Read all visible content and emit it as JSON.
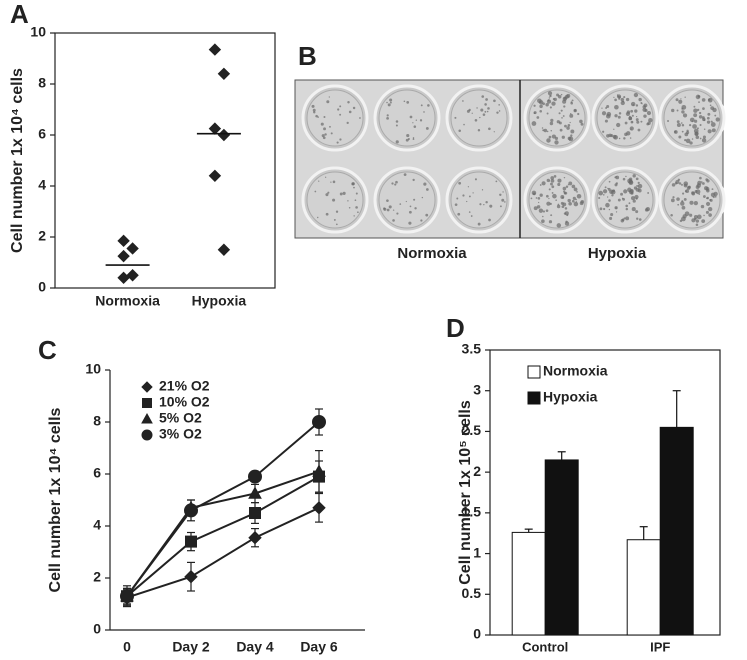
{
  "chart_data": [
    {
      "type": "strip",
      "panel": "A",
      "ylabel": "Cell number 1x 10⁴ cells",
      "categories": [
        "Normoxia",
        "Hypoxia"
      ],
      "values": [
        [
          1.85,
          1.55,
          1.25,
          0.5,
          0.4
        ],
        [
          9.35,
          8.4,
          6.25,
          6.0,
          4.4,
          1.5
        ]
      ],
      "means": [
        0.9,
        6.05
      ],
      "color": "#222222",
      "ylim": [
        0,
        10
      ],
      "yticks": [
        0,
        2,
        4,
        6,
        8,
        10
      ]
    },
    {
      "type": "image",
      "panel": "B",
      "labels": [
        "Normoxia",
        "Hypoxia"
      ]
    },
    {
      "type": "line",
      "panel": "C",
      "ylabel": "Cell number 1x 10⁴ cells",
      "categories": [
        "0",
        "Day 2",
        "Day 4",
        "Day 6"
      ],
      "series": [
        {
          "name": "21% O2",
          "marker": "diamond",
          "color": "#222222",
          "values": [
            1.25,
            2.05,
            3.55,
            4.7
          ],
          "errors": [
            0.3,
            0.55,
            0.35,
            0.55
          ]
        },
        {
          "name": "10% O2",
          "marker": "square",
          "color": "#222222",
          "values": [
            1.3,
            3.4,
            4.5,
            5.9
          ],
          "errors": [
            0.3,
            0.35,
            0.4,
            0.6
          ]
        },
        {
          "name": "5% O2",
          "marker": "triangle",
          "color": "#222222",
          "values": [
            1.3,
            4.7,
            5.25,
            6.1
          ],
          "errors": [
            0.3,
            0.3,
            0.35,
            0.8
          ]
        },
        {
          "name": "3% O2",
          "marker": "circle",
          "color": "#222222",
          "values": [
            1.3,
            4.6,
            5.9,
            8.0
          ],
          "errors": [
            0.4,
            0.4,
            0.2,
            0.5
          ]
        }
      ],
      "ylim": [
        0,
        10
      ],
      "yticks": [
        0,
        2,
        4,
        6,
        8,
        10
      ],
      "legend": "upper-left"
    },
    {
      "type": "bar",
      "panel": "D",
      "ylabel": "Cell number 1x 10⁵ cells",
      "categories": [
        "Control",
        "IPF"
      ],
      "series": [
        {
          "name": "Normoxia",
          "color": "#ffffff",
          "values": [
            1.26,
            1.17
          ],
          "errors": [
            0.04,
            0.16
          ]
        },
        {
          "name": "Hypoxia",
          "color": "#111111",
          "values": [
            2.15,
            2.55
          ],
          "errors": [
            0.1,
            0.45
          ]
        }
      ],
      "ylim": [
        0,
        3.5
      ],
      "yticks": [
        0,
        0.5,
        1,
        1.5,
        2,
        2.5,
        3,
        3.5
      ],
      "legend": "upper-left"
    }
  ]
}
